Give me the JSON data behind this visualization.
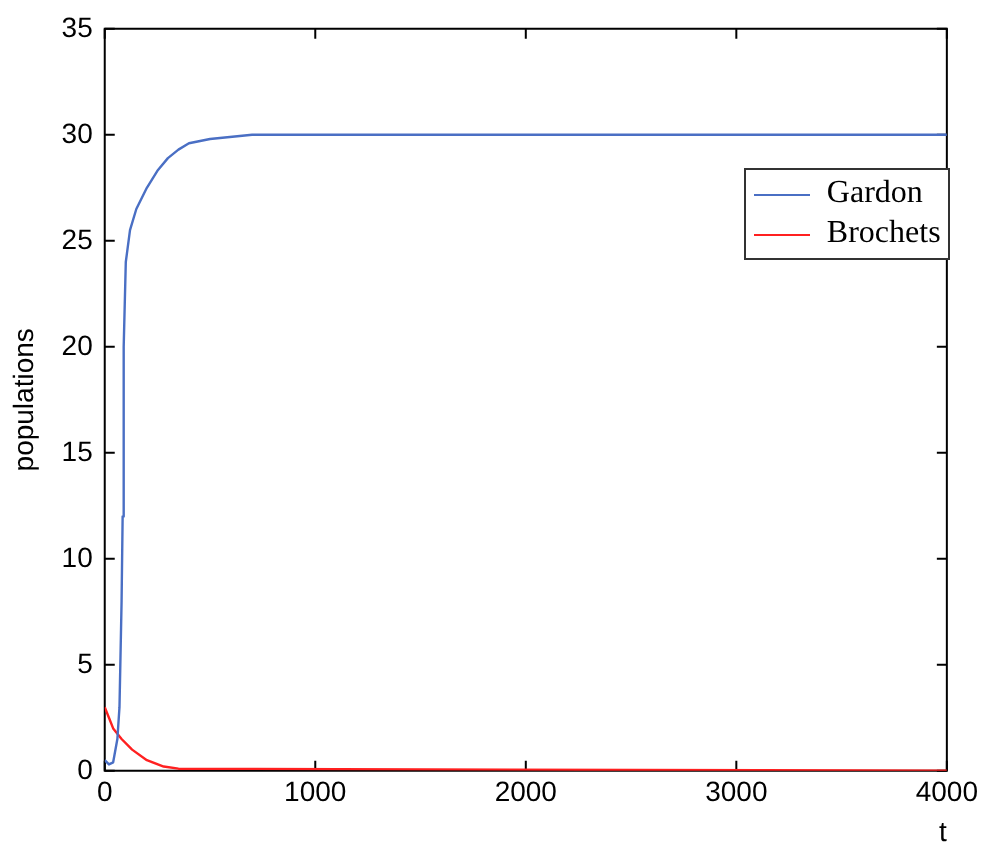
{
  "chart_data": {
    "type": "line",
    "xlabel": "t",
    "ylabel": "populations",
    "xlim": [
      0,
      4000
    ],
    "xticks": [
      0,
      1000,
      2000,
      3000,
      4000
    ],
    "ylim": [
      0,
      35
    ],
    "yticks": [
      0,
      5,
      10,
      15,
      20,
      25,
      30,
      35
    ],
    "grid": false,
    "legend": "top right",
    "marker": "none",
    "line_style": "solid",
    "series": [
      {
        "name": "Gardon",
        "color": "#4a6fc4",
        "x": [
          0,
          20,
          40,
          60,
          70,
          80,
          85,
          90,
          100,
          120,
          150,
          200,
          250,
          300,
          350,
          400,
          500,
          700,
          4000
        ],
        "values": [
          0.5,
          0.3,
          0.4,
          1.5,
          3,
          8,
          12,
          20,
          24,
          25.5,
          26.5,
          27.5,
          28.3,
          28.9,
          29.3,
          29.6,
          29.8,
          30,
          30
        ]
      },
      {
        "name": "Brochets",
        "color": "#ff2020",
        "x": [
          0,
          20,
          40,
          80,
          130,
          200,
          280,
          350,
          4000
        ],
        "values": [
          3,
          2.5,
          2,
          1.5,
          1,
          0.5,
          0.2,
          0.1,
          0
        ]
      }
    ]
  }
}
